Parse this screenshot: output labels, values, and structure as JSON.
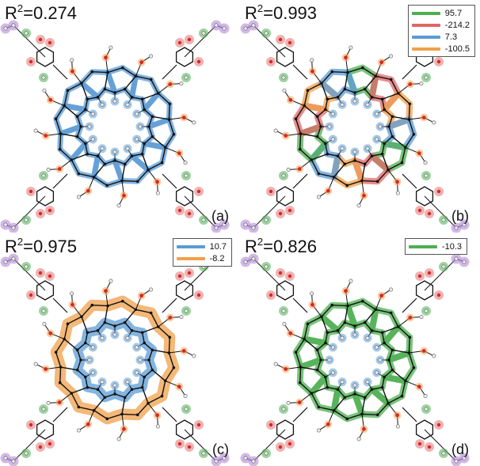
{
  "colors": {
    "blue": "#5b9bd5",
    "red": "#e06666",
    "green": "#4caf50",
    "orange": "#f0a04b",
    "purple": "#b48ad8",
    "bond": "#111111",
    "oxygen": "#d62828",
    "hydrogen": "#eeeeee"
  },
  "panels": [
    {
      "id": "a",
      "r2_prefix": "R",
      "r2_sup": "2",
      "r2_value": "=0.274",
      "label": "(a)",
      "legend": [],
      "ring_mode": "a"
    },
    {
      "id": "b",
      "r2_prefix": "R",
      "r2_sup": "2",
      "r2_value": "=0.993",
      "label": "(b)",
      "legend": [
        {
          "color": "#4caf50",
          "text": "95.7"
        },
        {
          "color": "#e06666",
          "text": "-214.2"
        },
        {
          "color": "#5b9bd5",
          "text": "7.3"
        },
        {
          "color": "#f0a04b",
          "text": "-100.5"
        }
      ],
      "ring_mode": "b"
    },
    {
      "id": "c",
      "r2_prefix": "R",
      "r2_sup": "2",
      "r2_value": "=0.975",
      "label": "(c)",
      "legend": [
        {
          "color": "#5b9bd5",
          "text": "10.7"
        },
        {
          "color": "#f0a04b",
          "text": "-8.2"
        }
      ],
      "ring_mode": "c"
    },
    {
      "id": "d",
      "r2_prefix": "R",
      "r2_sup": "2",
      "r2_value": "=0.826",
      "label": "(d)",
      "legend": [
        {
          "color": "#4caf50",
          "text": "-10.3"
        }
      ],
      "ring_mode": "d"
    }
  ]
}
